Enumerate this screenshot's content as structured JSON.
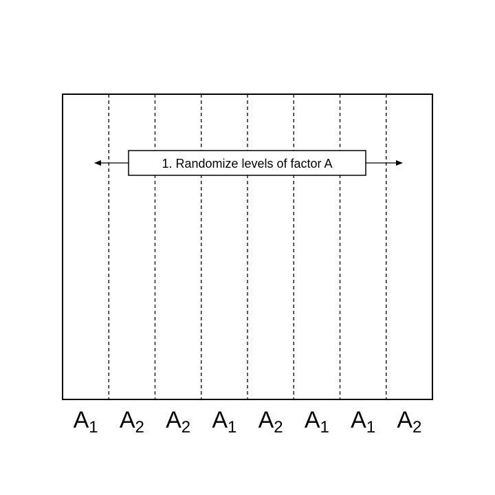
{
  "diagram": {
    "instruction": "1. Randomize levels of factor A",
    "strips": [
      {
        "letter": "A",
        "sub": "1"
      },
      {
        "letter": "A",
        "sub": "2"
      },
      {
        "letter": "A",
        "sub": "2"
      },
      {
        "letter": "A",
        "sub": "1"
      },
      {
        "letter": "A",
        "sub": "2"
      },
      {
        "letter": "A",
        "sub": "1"
      },
      {
        "letter": "A",
        "sub": "1"
      },
      {
        "letter": "A",
        "sub": "2"
      }
    ]
  }
}
